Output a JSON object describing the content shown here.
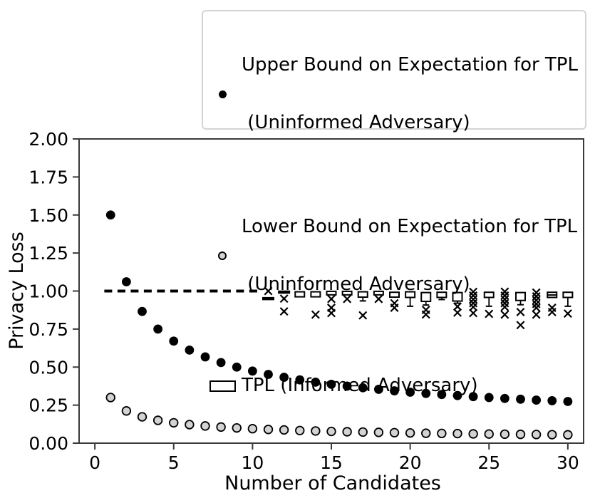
{
  "legend": {
    "border_color": "#d4d4d4",
    "entries": [
      {
        "marker": "filled-circle",
        "marker_color": "#000000",
        "line1": "Upper Bound on Expectation for TPL",
        "line2": " (Uninformed Adversary)"
      },
      {
        "marker": "open-circle",
        "marker_color": "#d3d3d3",
        "line1": "Lower Bound on Expectation for TPL",
        "line2": " (Uninformed Adversary)"
      },
      {
        "marker": "open-box",
        "marker_color": "#ffffff",
        "line1": "TPL (Informed Adversary)",
        "line2": ""
      }
    ]
  },
  "chart_data": {
    "type": "scatter",
    "title": "",
    "xlabel": "Number of Candidates",
    "ylabel": "Privacy Loss",
    "xlim": [
      -1,
      31
    ],
    "ylim": [
      0,
      2
    ],
    "xticks": [
      0,
      5,
      10,
      15,
      20,
      25,
      30
    ],
    "ytick_labels": [
      "0.00",
      "0.25",
      "0.50",
      "0.75",
      "1.00",
      "1.25",
      "1.50",
      "1.75",
      "2.00"
    ],
    "grid": false,
    "legend_position": "top-right-above-axes",
    "axis_color": "#3a3a3a",
    "series": [
      {
        "name": "Upper Bound on Expectation for TPL (Uninformed Adversary)",
        "type": "scatter",
        "marker": "filled-circle",
        "color": "#000000",
        "x": [
          1,
          2,
          3,
          4,
          5,
          6,
          7,
          8,
          9,
          10,
          11,
          12,
          13,
          14,
          15,
          16,
          17,
          18,
          19,
          20,
          21,
          22,
          23,
          24,
          25,
          26,
          27,
          28,
          29,
          30
        ],
        "y": [
          1.5,
          1.061,
          0.866,
          0.75,
          0.671,
          0.612,
          0.567,
          0.53,
          0.5,
          0.474,
          0.452,
          0.433,
          0.416,
          0.401,
          0.387,
          0.375,
          0.364,
          0.354,
          0.344,
          0.335,
          0.327,
          0.32,
          0.313,
          0.306,
          0.3,
          0.294,
          0.289,
          0.283,
          0.279,
          0.274
        ]
      },
      {
        "name": "Lower Bound on Expectation for TPL (Uninformed Adversary)",
        "type": "scatter",
        "marker": "open-circle",
        "color": "#d3d3d3",
        "edge_color": "#000000",
        "x": [
          1,
          2,
          3,
          4,
          5,
          6,
          7,
          8,
          9,
          10,
          11,
          12,
          13,
          14,
          15,
          16,
          17,
          18,
          19,
          20,
          21,
          22,
          23,
          24,
          25,
          26,
          27,
          28,
          29,
          30
        ],
        "y": [
          0.3,
          0.212,
          0.173,
          0.15,
          0.134,
          0.122,
          0.113,
          0.106,
          0.1,
          0.095,
          0.09,
          0.087,
          0.083,
          0.08,
          0.077,
          0.075,
          0.073,
          0.071,
          0.069,
          0.067,
          0.065,
          0.064,
          0.063,
          0.061,
          0.06,
          0.059,
          0.058,
          0.057,
          0.056,
          0.055
        ]
      },
      {
        "name": "TPL (Informed Adversary) deterministic line",
        "type": "dashed-hline",
        "color": "#000000",
        "y": 1.0,
        "x_start": 0.6,
        "x_end": 10.5
      }
    ],
    "boxplots": {
      "name": "TPL (Informed Adversary)",
      "color": "#000000",
      "flier_marker": "x",
      "items": [
        {
          "n": 11,
          "box": null,
          "median": 0.95,
          "median_thick": true,
          "whisker_low": null,
          "outliers": [
            1.0
          ]
        },
        {
          "n": 12,
          "box": null,
          "median": 0.993,
          "median_thick": true,
          "whisker_low": null,
          "outliers": [
            0.95,
            0.866
          ]
        },
        {
          "n": 13,
          "box": [
            0.962,
            0.995
          ],
          "median": null,
          "whisker_low": null,
          "outliers": []
        },
        {
          "n": 14,
          "box": [
            0.962,
            0.995
          ],
          "median": null,
          "whisker_low": null,
          "outliers": [
            0.845
          ]
        },
        {
          "n": 15,
          "box": [
            0.975,
            0.998
          ],
          "median": null,
          "whisker_low": null,
          "outliers": [
            0.948,
            0.89,
            0.855
          ]
        },
        {
          "n": 16,
          "box": [
            0.975,
            0.998
          ],
          "median": null,
          "whisker_low": null,
          "outliers": [
            0.948
          ]
        },
        {
          "n": 17,
          "box": [
            0.96,
            0.995
          ],
          "median": null,
          "whisker_low": 0.935,
          "outliers": [
            0.84
          ]
        },
        {
          "n": 18,
          "box": [
            0.975,
            0.998
          ],
          "median": null,
          "whisker_low": null,
          "outliers": [
            0.948
          ]
        },
        {
          "n": 19,
          "box": [
            0.96,
            0.992
          ],
          "median": null,
          "whisker_low": null,
          "outliers": [
            0.92,
            0.89
          ]
        },
        {
          "n": 20,
          "box": [
            0.958,
            0.995
          ],
          "median": null,
          "whisker_low": 0.9,
          "outliers": []
        },
        {
          "n": 21,
          "box": [
            0.932,
            0.99
          ],
          "median": null,
          "whisker_low": 0.908,
          "outliers": [
            0.876,
            0.846
          ]
        },
        {
          "n": 22,
          "box": [
            0.958,
            0.992
          ],
          "median": null,
          "whisker_low": 0.944,
          "outliers": []
        },
        {
          "n": 23,
          "box": [
            0.934,
            0.99
          ],
          "median": null,
          "whisker_low": 0.92,
          "outliers": [
            0.898,
            0.858
          ]
        },
        {
          "n": 24,
          "box": null,
          "median": null,
          "whisker_low": null,
          "outliers": [
            0.995,
            0.97,
            0.945,
            0.92,
            0.895,
            0.855
          ]
        },
        {
          "n": 25,
          "box": [
            0.958,
            0.992
          ],
          "median": null,
          "whisker_low": 0.9,
          "outliers": [
            0.85
          ]
        },
        {
          "n": 26,
          "box": null,
          "median": null,
          "whisker_low": null,
          "outliers": [
            0.996,
            0.97,
            0.945,
            0.92,
            0.895,
            0.845
          ]
        },
        {
          "n": 27,
          "box": [
            0.938,
            0.99
          ],
          "median": null,
          "whisker_low": 0.91,
          "outliers": [
            0.862,
            0.776
          ]
        },
        {
          "n": 28,
          "box": null,
          "median": null,
          "whisker_low": null,
          "outliers": [
            0.99,
            0.965,
            0.94,
            0.915,
            0.89,
            0.845
          ]
        },
        {
          "n": 29,
          "box": [
            0.958,
            0.992
          ],
          "median": 0.974,
          "whisker_low": null,
          "outliers": [
            0.89,
            0.862
          ]
        },
        {
          "n": 30,
          "box": [
            0.958,
            0.992
          ],
          "median": null,
          "whisker_low": 0.9,
          "outliers": [
            0.852
          ]
        }
      ]
    }
  }
}
